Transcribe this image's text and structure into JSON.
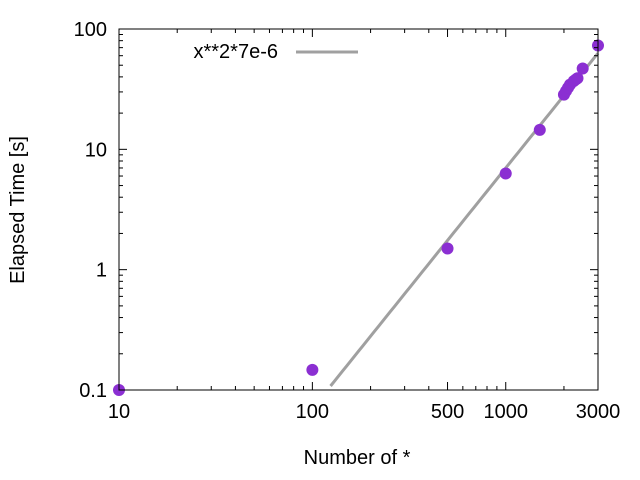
{
  "chart_data": {
    "type": "scatter",
    "xlabel": "Number of *",
    "ylabel": "Elapsed Time [s]",
    "xscale": "log",
    "yscale": "log",
    "xlim": [
      10,
      3000
    ],
    "ylim": [
      0.1,
      100
    ],
    "xticks": [
      {
        "value": 10,
        "label": "10"
      },
      {
        "value": 100,
        "label": "100"
      },
      {
        "value": 500,
        "label": "500"
      },
      {
        "value": 1000,
        "label": "1000"
      },
      {
        "value": 3000,
        "label": "3000"
      }
    ],
    "yticks": [
      {
        "value": 0.1,
        "label": "0.1"
      },
      {
        "value": 1,
        "label": "1"
      },
      {
        "value": 10,
        "label": "10"
      },
      {
        "value": 100,
        "label": "100"
      }
    ],
    "grid": false,
    "legend_position": "top-left",
    "series": [
      {
        "type": "scatter",
        "color": "#8b2fd2",
        "points": [
          {
            "x": 10,
            "y": 0.1
          },
          {
            "x": 100,
            "y": 0.147
          },
          {
            "x": 500,
            "y": 1.5
          },
          {
            "x": 1000,
            "y": 6.3
          },
          {
            "x": 1500,
            "y": 14.5
          },
          {
            "x": 2000,
            "y": 28.5
          },
          {
            "x": 2050,
            "y": 30.5
          },
          {
            "x": 2100,
            "y": 32.5
          },
          {
            "x": 2150,
            "y": 34.5
          },
          {
            "x": 2250,
            "y": 37
          },
          {
            "x": 2300,
            "y": 38
          },
          {
            "x": 2350,
            "y": 39
          },
          {
            "x": 2500,
            "y": 47
          },
          {
            "x": 3000,
            "y": 73
          }
        ]
      },
      {
        "name": "x**2*7e-6",
        "type": "line",
        "color": "#a0a0a0",
        "function": "x**2*7e-6"
      }
    ]
  }
}
